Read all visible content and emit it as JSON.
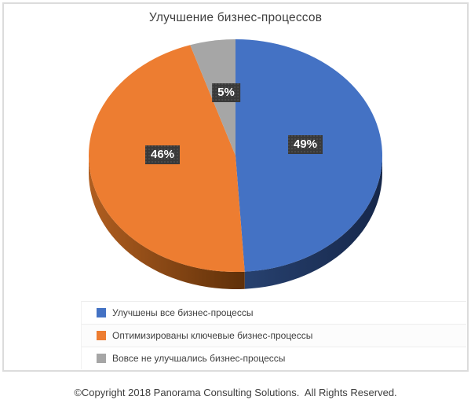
{
  "page": {
    "copyright": "©Copyright 2018 Panorama Consulting Solutions.  All Rights Reserved."
  },
  "chart_data": {
    "type": "pie",
    "title": "Улучшение бизнес-процессов",
    "categories": [
      "Улучшены все бизнес-процессы",
      "Оптимизированы ключевые бизнес-процессы",
      "Вовсе не улучшались бизнес-процессы"
    ],
    "values": [
      49,
      46,
      5
    ],
    "labels": [
      "49%",
      "46%",
      "5%"
    ],
    "colors": [
      "#4472C4",
      "#ED7D31",
      "#A6A6A6"
    ],
    "side_colors": [
      [
        "#27416F",
        "#16274A"
      ],
      [
        "#B05E20",
        "#5F3009"
      ],
      [
        "#8C8C8C",
        "#6E6E6E"
      ]
    ],
    "effect": "3d",
    "start_angle_deg": 0,
    "direction": "clockwise",
    "legend_position": "bottom-left",
    "background": "#FFFFFF",
    "frame_border_color": "#DCDCDC",
    "label_box_color": "#393939",
    "label_text_color": "#FFFFFF"
  }
}
